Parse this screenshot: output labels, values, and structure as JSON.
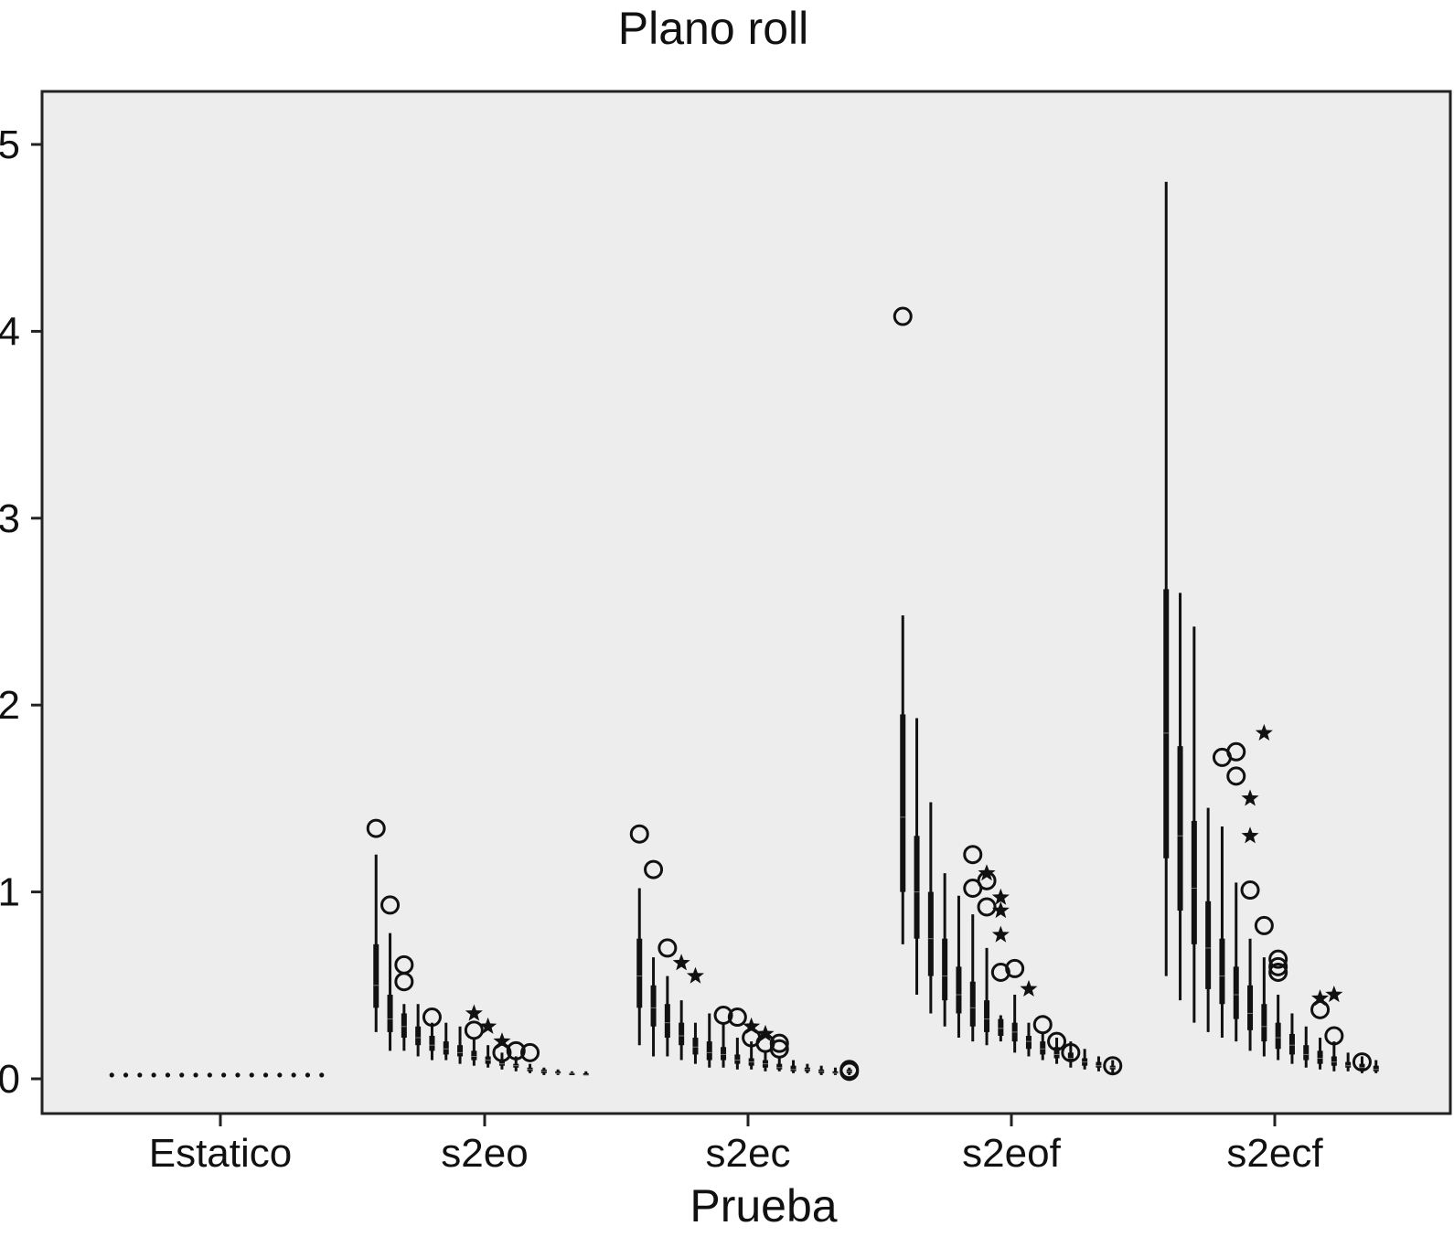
{
  "chart_data": {
    "type": "box",
    "title": "Plano roll",
    "xlabel": "Prueba",
    "ylabel": "",
    "ylim": [
      -0.28,
      5.3
    ],
    "yticks": [
      0,
      1,
      2,
      3,
      4,
      5
    ],
    "grid": false,
    "background": "#ededed",
    "categories": [
      "Estatico",
      "s2eo",
      "s2ec",
      "s2eof",
      "s2ecf"
    ],
    "groups": [
      {
        "category": "Estatico",
        "boxes": [
          {
            "min": 0.02,
            "q1": 0.02,
            "median": 0.02,
            "q3": 0.02,
            "max": 0.02
          },
          {
            "min": 0.02,
            "q1": 0.02,
            "median": 0.02,
            "q3": 0.02,
            "max": 0.02
          },
          {
            "min": 0.02,
            "q1": 0.02,
            "median": 0.02,
            "q3": 0.02,
            "max": 0.02
          },
          {
            "min": 0.02,
            "q1": 0.02,
            "median": 0.02,
            "q3": 0.02,
            "max": 0.02
          },
          {
            "min": 0.02,
            "q1": 0.02,
            "median": 0.02,
            "q3": 0.02,
            "max": 0.02
          },
          {
            "min": 0.02,
            "q1": 0.02,
            "median": 0.02,
            "q3": 0.02,
            "max": 0.02
          },
          {
            "min": 0.02,
            "q1": 0.02,
            "median": 0.02,
            "q3": 0.02,
            "max": 0.02
          },
          {
            "min": 0.02,
            "q1": 0.02,
            "median": 0.02,
            "q3": 0.02,
            "max": 0.02
          },
          {
            "min": 0.02,
            "q1": 0.02,
            "median": 0.02,
            "q3": 0.02,
            "max": 0.02
          },
          {
            "min": 0.02,
            "q1": 0.02,
            "median": 0.02,
            "q3": 0.02,
            "max": 0.02
          },
          {
            "min": 0.02,
            "q1": 0.02,
            "median": 0.02,
            "q3": 0.02,
            "max": 0.02
          },
          {
            "min": 0.02,
            "q1": 0.02,
            "median": 0.02,
            "q3": 0.02,
            "max": 0.02
          },
          {
            "min": 0.02,
            "q1": 0.02,
            "median": 0.02,
            "q3": 0.02,
            "max": 0.02
          },
          {
            "min": 0.02,
            "q1": 0.02,
            "median": 0.02,
            "q3": 0.02,
            "max": 0.02
          },
          {
            "min": 0.02,
            "q1": 0.02,
            "median": 0.02,
            "q3": 0.02,
            "max": 0.02
          },
          {
            "min": 0.02,
            "q1": 0.02,
            "median": 0.02,
            "q3": 0.02,
            "max": 0.02
          }
        ],
        "outliers": [],
        "extremes": []
      },
      {
        "category": "s2eo",
        "boxes": [
          {
            "min": 0.25,
            "q1": 0.38,
            "median": 0.5,
            "q3": 0.72,
            "max": 1.2
          },
          {
            "min": 0.15,
            "q1": 0.25,
            "median": 0.32,
            "q3": 0.45,
            "max": 0.78
          },
          {
            "min": 0.15,
            "q1": 0.22,
            "median": 0.28,
            "q3": 0.35,
            "max": 0.4
          },
          {
            "min": 0.12,
            "q1": 0.18,
            "median": 0.22,
            "q3": 0.28,
            "max": 0.4
          },
          {
            "min": 0.1,
            "q1": 0.15,
            "median": 0.18,
            "q3": 0.23,
            "max": 0.3
          },
          {
            "min": 0.1,
            "q1": 0.13,
            "median": 0.16,
            "q3": 0.2,
            "max": 0.3
          },
          {
            "min": 0.08,
            "q1": 0.12,
            "median": 0.14,
            "q3": 0.18,
            "max": 0.28
          },
          {
            "min": 0.07,
            "q1": 0.1,
            "median": 0.12,
            "q3": 0.15,
            "max": 0.22
          },
          {
            "min": 0.06,
            "q1": 0.08,
            "median": 0.1,
            "q3": 0.12,
            "max": 0.18
          },
          {
            "min": 0.05,
            "q1": 0.07,
            "median": 0.08,
            "q3": 0.1,
            "max": 0.14
          },
          {
            "min": 0.04,
            "q1": 0.06,
            "median": 0.07,
            "q3": 0.08,
            "max": 0.12
          },
          {
            "min": 0.03,
            "q1": 0.04,
            "median": 0.05,
            "q3": 0.06,
            "max": 0.08
          },
          {
            "min": 0.02,
            "q1": 0.03,
            "median": 0.04,
            "q3": 0.05,
            "max": 0.06
          },
          {
            "min": 0.02,
            "q1": 0.03,
            "median": 0.03,
            "q3": 0.04,
            "max": 0.05
          },
          {
            "min": 0.02,
            "q1": 0.02,
            "median": 0.03,
            "q3": 0.03,
            "max": 0.04
          },
          {
            "min": 0.02,
            "q1": 0.02,
            "median": 0.02,
            "q3": 0.03,
            "max": 0.04
          }
        ],
        "outliers": [
          {
            "box": 0,
            "value": 1.34
          },
          {
            "box": 1,
            "value": 0.93
          },
          {
            "box": 2,
            "value": 0.61
          },
          {
            "box": 2,
            "value": 0.52
          },
          {
            "box": 4,
            "value": 0.33
          },
          {
            "box": 7,
            "value": 0.26
          },
          {
            "box": 9,
            "value": 0.14
          },
          {
            "box": 10,
            "value": 0.15
          },
          {
            "box": 11,
            "value": 0.14
          }
        ],
        "extremes": [
          {
            "box": 7,
            "value": 0.35
          },
          {
            "box": 8,
            "value": 0.28
          },
          {
            "box": 9,
            "value": 0.2
          }
        ]
      },
      {
        "category": "s2ec",
        "boxes": [
          {
            "min": 0.18,
            "q1": 0.38,
            "median": 0.55,
            "q3": 0.75,
            "max": 1.02
          },
          {
            "min": 0.12,
            "q1": 0.28,
            "median": 0.38,
            "q3": 0.5,
            "max": 0.65
          },
          {
            "min": 0.12,
            "q1": 0.22,
            "median": 0.3,
            "q3": 0.4,
            "max": 0.55
          },
          {
            "min": 0.1,
            "q1": 0.18,
            "median": 0.23,
            "q3": 0.3,
            "max": 0.42
          },
          {
            "min": 0.08,
            "q1": 0.13,
            "median": 0.17,
            "q3": 0.22,
            "max": 0.3
          },
          {
            "min": 0.06,
            "q1": 0.1,
            "median": 0.14,
            "q3": 0.2,
            "max": 0.35
          },
          {
            "min": 0.06,
            "q1": 0.1,
            "median": 0.13,
            "q3": 0.17,
            "max": 0.3
          },
          {
            "min": 0.05,
            "q1": 0.08,
            "median": 0.1,
            "q3": 0.13,
            "max": 0.22
          },
          {
            "min": 0.05,
            "q1": 0.07,
            "median": 0.09,
            "q3": 0.11,
            "max": 0.2
          },
          {
            "min": 0.04,
            "q1": 0.06,
            "median": 0.08,
            "q3": 0.1,
            "max": 0.15
          },
          {
            "min": 0.04,
            "q1": 0.05,
            "median": 0.06,
            "q3": 0.08,
            "max": 0.12
          },
          {
            "min": 0.03,
            "q1": 0.04,
            "median": 0.05,
            "q3": 0.07,
            "max": 0.1
          },
          {
            "min": 0.03,
            "q1": 0.04,
            "median": 0.05,
            "q3": 0.06,
            "max": 0.08
          },
          {
            "min": 0.02,
            "q1": 0.03,
            "median": 0.04,
            "q3": 0.05,
            "max": 0.07
          },
          {
            "min": 0.02,
            "q1": 0.03,
            "median": 0.03,
            "q3": 0.04,
            "max": 0.06
          },
          {
            "min": 0.02,
            "q1": 0.03,
            "median": 0.04,
            "q3": 0.05,
            "max": 0.06
          }
        ],
        "outliers": [
          {
            "box": 0,
            "value": 1.31
          },
          {
            "box": 1,
            "value": 1.12
          },
          {
            "box": 2,
            "value": 0.7
          },
          {
            "box": 6,
            "value": 0.34
          },
          {
            "box": 7,
            "value": 0.33
          },
          {
            "box": 8,
            "value": 0.22
          },
          {
            "box": 9,
            "value": 0.19
          },
          {
            "box": 10,
            "value": 0.19
          },
          {
            "box": 10,
            "value": 0.16
          },
          {
            "box": 15,
            "value": 0.04
          },
          {
            "box": 15,
            "value": 0.05
          }
        ],
        "extremes": [
          {
            "box": 3,
            "value": 0.62
          },
          {
            "box": 4,
            "value": 0.55
          },
          {
            "box": 8,
            "value": 0.28
          },
          {
            "box": 9,
            "value": 0.24
          }
        ]
      },
      {
        "category": "s2eof",
        "boxes": [
          {
            "min": 0.72,
            "q1": 1.0,
            "median": 1.4,
            "q3": 1.95,
            "max": 2.48
          },
          {
            "min": 0.45,
            "q1": 0.75,
            "median": 1.0,
            "q3": 1.3,
            "max": 1.93
          },
          {
            "min": 0.35,
            "q1": 0.55,
            "median": 0.75,
            "q3": 1.0,
            "max": 1.48
          },
          {
            "min": 0.28,
            "q1": 0.42,
            "median": 0.55,
            "q3": 0.75,
            "max": 1.1
          },
          {
            "min": 0.22,
            "q1": 0.35,
            "median": 0.45,
            "q3": 0.6,
            "max": 0.98
          },
          {
            "min": 0.2,
            "q1": 0.28,
            "median": 0.38,
            "q3": 0.52,
            "max": 0.88
          },
          {
            "min": 0.18,
            "q1": 0.25,
            "median": 0.32,
            "q3": 0.42,
            "max": 0.7
          },
          {
            "min": 0.2,
            "q1": 0.23,
            "median": 0.27,
            "q3": 0.32,
            "max": 0.34
          },
          {
            "min": 0.14,
            "q1": 0.2,
            "median": 0.25,
            "q3": 0.3,
            "max": 0.45
          },
          {
            "min": 0.12,
            "q1": 0.16,
            "median": 0.2,
            "q3": 0.23,
            "max": 0.3
          },
          {
            "min": 0.1,
            "q1": 0.13,
            "median": 0.16,
            "q3": 0.2,
            "max": 0.25
          },
          {
            "min": 0.08,
            "q1": 0.11,
            "median": 0.13,
            "q3": 0.17,
            "max": 0.22
          },
          {
            "min": 0.06,
            "q1": 0.09,
            "median": 0.11,
            "q3": 0.14,
            "max": 0.2
          },
          {
            "min": 0.05,
            "q1": 0.07,
            "median": 0.09,
            "q3": 0.11,
            "max": 0.16
          },
          {
            "min": 0.04,
            "q1": 0.06,
            "median": 0.07,
            "q3": 0.09,
            "max": 0.12
          },
          {
            "min": 0.03,
            "q1": 0.05,
            "median": 0.06,
            "q3": 0.07,
            "max": 0.1
          }
        ],
        "outliers": [
          {
            "box": 0,
            "value": 4.08
          },
          {
            "box": 5,
            "value": 1.2
          },
          {
            "box": 5,
            "value": 1.02
          },
          {
            "box": 6,
            "value": 1.06
          },
          {
            "box": 6,
            "value": 0.92
          },
          {
            "box": 7,
            "value": 0.57
          },
          {
            "box": 8,
            "value": 0.59
          },
          {
            "box": 10,
            "value": 0.29
          },
          {
            "box": 11,
            "value": 0.2
          },
          {
            "box": 12,
            "value": 0.14
          },
          {
            "box": 15,
            "value": 0.07
          }
        ],
        "extremes": [
          {
            "box": 6,
            "value": 1.1
          },
          {
            "box": 7,
            "value": 0.97
          },
          {
            "box": 7,
            "value": 0.9
          },
          {
            "box": 7,
            "value": 0.77
          },
          {
            "box": 9,
            "value": 0.48
          }
        ]
      },
      {
        "category": "s2ecf",
        "boxes": [
          {
            "min": 0.55,
            "q1": 1.18,
            "median": 1.85,
            "q3": 2.62,
            "max": 4.8
          },
          {
            "min": 0.42,
            "q1": 0.9,
            "median": 1.3,
            "q3": 1.78,
            "max": 2.6
          },
          {
            "min": 0.3,
            "q1": 0.72,
            "median": 1.02,
            "q3": 1.38,
            "max": 2.42
          },
          {
            "min": 0.25,
            "q1": 0.48,
            "median": 0.7,
            "q3": 0.95,
            "max": 1.45
          },
          {
            "min": 0.22,
            "q1": 0.4,
            "median": 0.55,
            "q3": 0.75,
            "max": 1.35
          },
          {
            "min": 0.2,
            "q1": 0.32,
            "median": 0.45,
            "q3": 0.6,
            "max": 1.05
          },
          {
            "min": 0.15,
            "q1": 0.26,
            "median": 0.35,
            "q3": 0.5,
            "max": 0.75
          },
          {
            "min": 0.12,
            "q1": 0.2,
            "median": 0.28,
            "q3": 0.4,
            "max": 0.65
          },
          {
            "min": 0.1,
            "q1": 0.16,
            "median": 0.22,
            "q3": 0.3,
            "max": 0.45
          },
          {
            "min": 0.08,
            "q1": 0.13,
            "median": 0.18,
            "q3": 0.24,
            "max": 0.35
          },
          {
            "min": 0.06,
            "q1": 0.1,
            "median": 0.13,
            "q3": 0.18,
            "max": 0.28
          },
          {
            "min": 0.05,
            "q1": 0.08,
            "median": 0.11,
            "q3": 0.15,
            "max": 0.22
          },
          {
            "min": 0.04,
            "q1": 0.07,
            "median": 0.09,
            "q3": 0.12,
            "max": 0.2
          },
          {
            "min": 0.04,
            "q1": 0.06,
            "median": 0.07,
            "q3": 0.09,
            "max": 0.14
          },
          {
            "min": 0.03,
            "q1": 0.05,
            "median": 0.06,
            "q3": 0.08,
            "max": 0.12
          },
          {
            "min": 0.03,
            "q1": 0.04,
            "median": 0.05,
            "q3": 0.07,
            "max": 0.1
          }
        ],
        "outliers": [
          {
            "box": 4,
            "value": 1.72
          },
          {
            "box": 5,
            "value": 1.75
          },
          {
            "box": 5,
            "value": 1.62
          },
          {
            "box": 6,
            "value": 1.01
          },
          {
            "box": 7,
            "value": 0.82
          },
          {
            "box": 8,
            "value": 0.64
          },
          {
            "box": 8,
            "value": 0.6
          },
          {
            "box": 8,
            "value": 0.57
          },
          {
            "box": 11,
            "value": 0.37
          },
          {
            "box": 12,
            "value": 0.23
          },
          {
            "box": 14,
            "value": 0.09
          }
        ],
        "extremes": [
          {
            "box": 7,
            "value": 1.85
          },
          {
            "box": 6,
            "value": 1.5
          },
          {
            "box": 6,
            "value": 1.3
          },
          {
            "box": 11,
            "value": 0.43
          },
          {
            "box": 12,
            "value": 0.45
          }
        ]
      }
    ]
  }
}
